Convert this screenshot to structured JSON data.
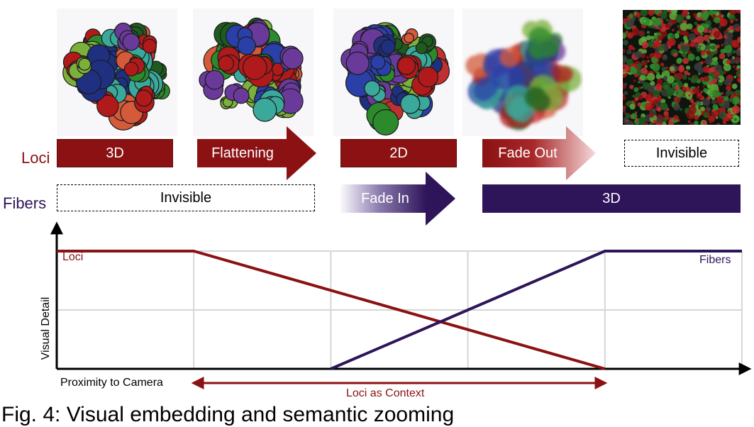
{
  "colors": {
    "loci": "#8b1113",
    "fibers": "#2e1459",
    "grid": "#d6d6d6",
    "axis": "#000000"
  },
  "thumbnails": [
    {
      "style": "3D clusters"
    },
    {
      "style": "flattened clusters"
    },
    {
      "style": "2D clusters"
    },
    {
      "style": "fading clusters"
    },
    {
      "style": "dense fibers"
    }
  ],
  "rows": {
    "loci": {
      "label": "Loci",
      "stages": [
        {
          "label": "3D",
          "kind": "solid"
        },
        {
          "label": "Flattening",
          "kind": "arrow"
        },
        {
          "label": "2D",
          "kind": "solid"
        },
        {
          "label": "Fade Out",
          "kind": "fade-arrow"
        },
        {
          "label": "Invisible",
          "kind": "dashed"
        }
      ]
    },
    "fibers": {
      "label": "Fibers",
      "stages": [
        {
          "label": "Invisible",
          "kind": "dashed"
        },
        {
          "label": "Fade In",
          "kind": "fade-arrow"
        },
        {
          "label": "3D",
          "kind": "solid"
        }
      ]
    }
  },
  "chart_data": {
    "type": "line",
    "xlabel": "Proximity to Camera",
    "ylabel": "Visual Detail",
    "xlim": [
      0,
      5
    ],
    "ylim": [
      0,
      2
    ],
    "grid": true,
    "series": [
      {
        "name": "Loci",
        "x": [
          0,
          1,
          4
        ],
        "y": [
          2,
          2,
          0
        ]
      },
      {
        "name": "Fibers",
        "x": [
          2,
          4,
          5
        ],
        "y": [
          0,
          2,
          2
        ]
      }
    ],
    "annotation": {
      "label": "Loci as Context",
      "x_start": 1,
      "x_end": 4
    }
  },
  "caption": "Fig. 4: Visual embedding and semantic zooming"
}
